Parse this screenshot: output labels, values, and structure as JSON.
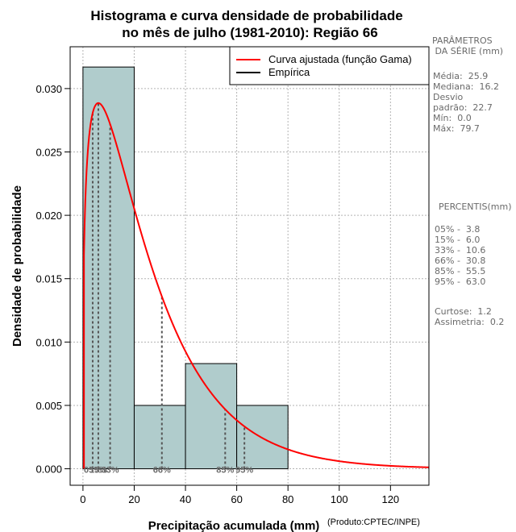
{
  "chart_data": {
    "type": "histogram",
    "title_lines": [
      "Histograma e curva densidade de probabilidade",
      "no mês de julho (1981-2010): Região 66"
    ],
    "xlabel": "Precipitação acumulada (mm)",
    "ylabel": "Densidade de probabilidade",
    "credit": "(Produto:CPTEC/INPE)",
    "xlim": [
      -5,
      135
    ],
    "ylim": [
      -0.0013,
      0.0333
    ],
    "x_ticks": [
      0,
      20,
      40,
      60,
      80,
      100,
      120
    ],
    "y_ticks": [
      0.0,
      0.005,
      0.01,
      0.015,
      0.02,
      0.025,
      0.03
    ],
    "y_tick_labels": [
      "0.000",
      "0.005",
      "0.010",
      "0.015",
      "0.020",
      "0.025",
      "0.030"
    ],
    "grid": true,
    "histogram": {
      "bins": [
        [
          0,
          20
        ],
        [
          20,
          40
        ],
        [
          40,
          60
        ],
        [
          60,
          80
        ]
      ],
      "densities": [
        0.0317,
        0.005,
        0.0083,
        0.005
      ],
      "color": "#b0cccc"
    },
    "fitted_curve": {
      "name": "Curva ajustada (função Gama)",
      "distribution": "gamma",
      "mean": 25.9,
      "sd": 22.7,
      "color": "#ff0000"
    },
    "percentile_lines": [
      {
        "label": "05%",
        "x": 3.8
      },
      {
        "label": "15%",
        "x": 6.0
      },
      {
        "label": "33%",
        "x": 10.6
      },
      {
        "label": "66%",
        "x": 30.8
      },
      {
        "label": "85%",
        "x": 55.5
      },
      {
        "label": "95%",
        "x": 63.0
      }
    ],
    "legend": {
      "position": "top-right",
      "entries": [
        {
          "label": "Curva ajustada (função Gama)",
          "color": "#ff0000"
        },
        {
          "label": "Empírica",
          "color": "#000000"
        }
      ]
    }
  },
  "side_panel": {
    "params_title": "PARÂMETROS\n DA SÉRIE (mm)",
    "params_text": "Média:  25.9\nMediana:  16.2\nDesvio\npadrão:  22.7\nMín:  0.0\nMáx:  79.7",
    "percentis_title": "PERCENTIS(mm)",
    "percentis_text": "05% -  3.8\n15% -  6.0\n33% -  10.6\n66% -  30.8\n85% -  55.5\n95% -  63.0",
    "shape_text": "Curtose:  1.2\nAssimetria:  0.2"
  }
}
